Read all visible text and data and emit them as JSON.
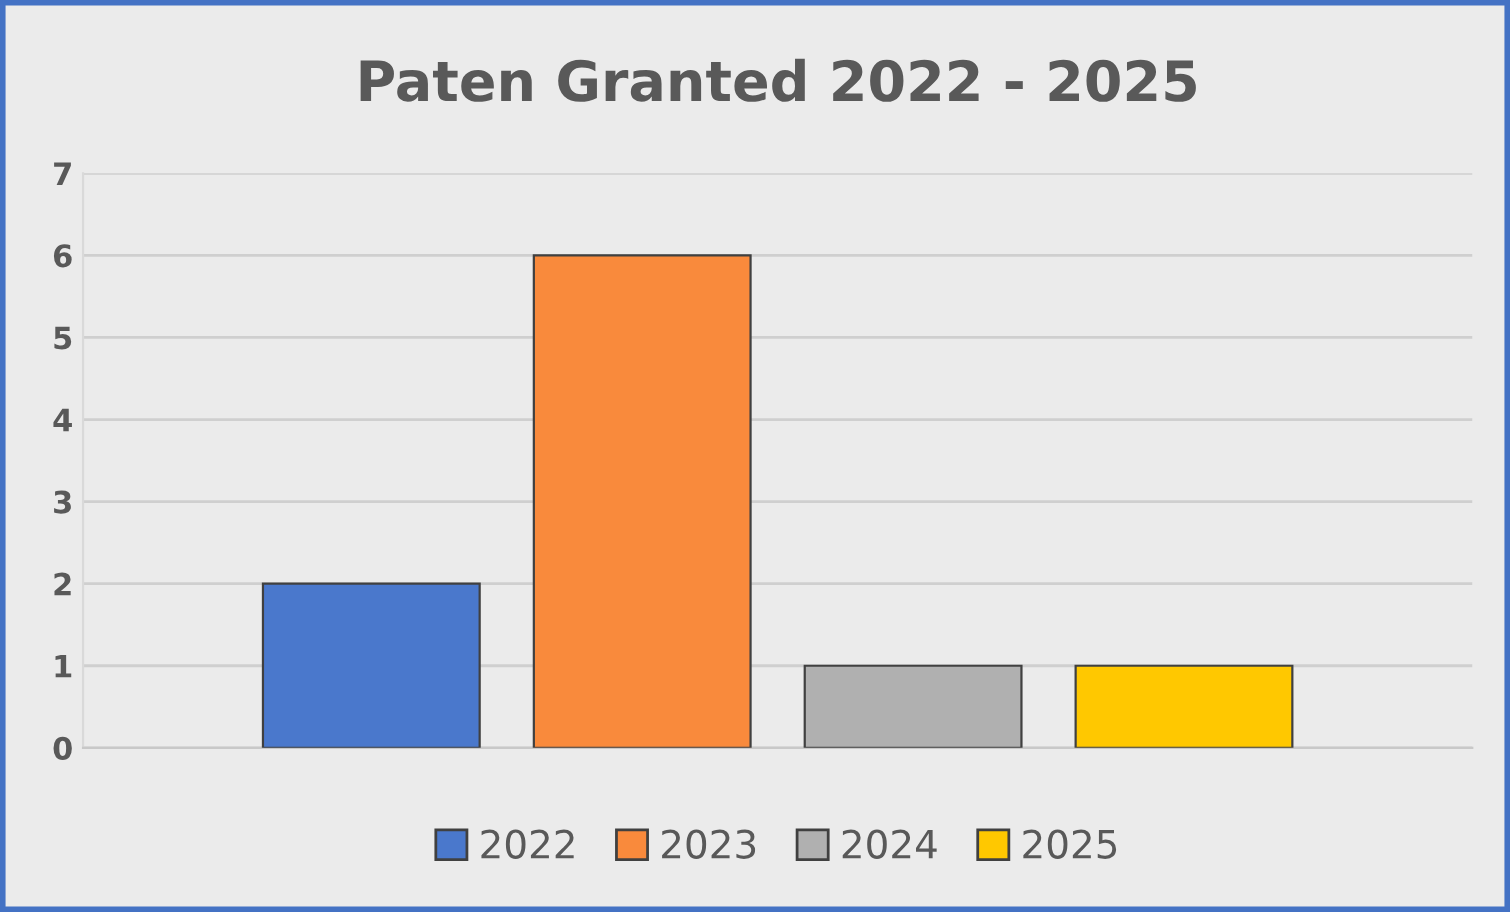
{
  "chart_data": {
    "type": "bar",
    "title": "Paten Granted 2022 - 2025",
    "categories": [
      null
    ],
    "series": [
      {
        "name": "2022",
        "color": "#4a78cc",
        "values": [
          2
        ]
      },
      {
        "name": "2023",
        "color": "#f98a3c",
        "values": [
          6
        ]
      },
      {
        "name": "2024",
        "color": "#b0b0b0",
        "values": [
          1
        ]
      },
      {
        "name": "2025",
        "color": "#ffc800",
        "values": [
          1
        ]
      }
    ],
    "ylim": [
      0,
      7
    ],
    "yticks": [
      0,
      1,
      2,
      3,
      4,
      5,
      6,
      7
    ],
    "grid": "y",
    "legend": "bottom"
  }
}
